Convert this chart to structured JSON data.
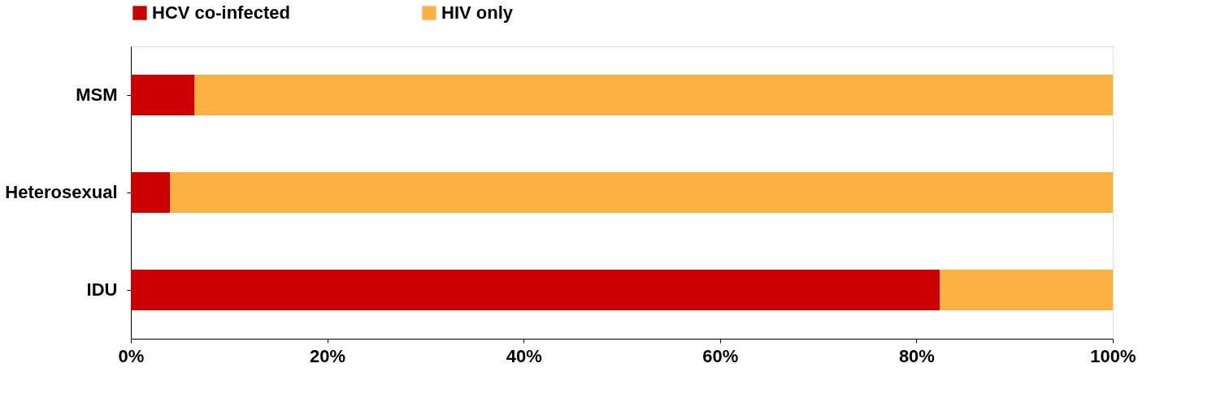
{
  "chart_data": {
    "type": "bar",
    "orientation": "horizontal",
    "stacked": true,
    "categories": [
      "MSM",
      "Heterosexual",
      "IDU"
    ],
    "series": [
      {
        "name": "HCV co-infected",
        "color": "#cc0000",
        "values": [
          6.5,
          4.0,
          82.4
        ]
      },
      {
        "name": "HIV only",
        "color": "#fbb040",
        "values": [
          93.5,
          96.0,
          17.6
        ]
      }
    ],
    "xlim": [
      0,
      100
    ],
    "xticks": [
      {
        "value": 0,
        "label": "0%"
      },
      {
        "value": 20,
        "label": "20%"
      },
      {
        "value": 40,
        "label": "40%"
      },
      {
        "value": 60,
        "label": "60%"
      },
      {
        "value": 80,
        "label": "80%"
      },
      {
        "value": 100,
        "label": "100%"
      }
    ],
    "legend": "top",
    "grid": false
  }
}
